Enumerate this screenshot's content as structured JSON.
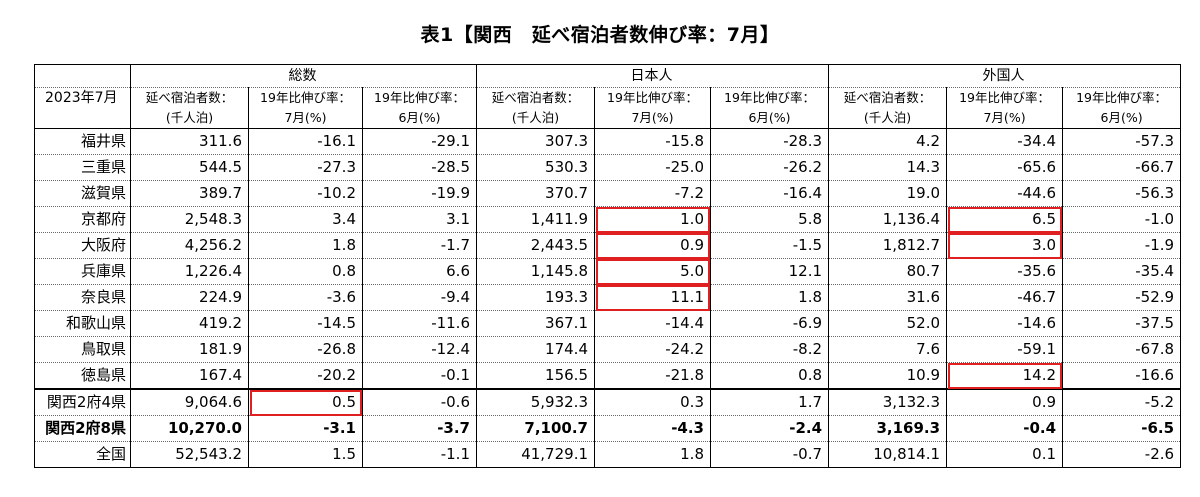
{
  "title": "表1【関西　延べ宿泊者数伸び率：7月】",
  "header": {
    "corner_label": "2023年7月",
    "groups": [
      "総数",
      "日本人",
      "外国人"
    ],
    "sub1": [
      "延べ宿泊者数：",
      "19年比伸び率：",
      "19年比伸び率："
    ],
    "sub2": [
      "(千人泊)",
      "7月(%)",
      "6月(%)"
    ]
  },
  "rows": [
    {
      "label": "福井県",
      "cells": [
        "311.6",
        "-16.1",
        "-29.1",
        "307.3",
        "-15.8",
        "-28.3",
        "4.2",
        "-34.4",
        "-57.3"
      ]
    },
    {
      "label": "三重県",
      "cells": [
        "544.5",
        "-27.3",
        "-28.5",
        "530.3",
        "-25.0",
        "-26.2",
        "14.3",
        "-65.6",
        "-66.7"
      ]
    },
    {
      "label": "滋賀県",
      "cells": [
        "389.7",
        "-10.2",
        "-19.9",
        "370.7",
        "-7.2",
        "-16.4",
        "19.0",
        "-44.6",
        "-56.3"
      ]
    },
    {
      "label": "京都府",
      "cells": [
        "2,548.3",
        "3.4",
        "3.1",
        "1,411.9",
        "1.0",
        "5.8",
        "1,136.4",
        "6.5",
        "-1.0"
      ]
    },
    {
      "label": "大阪府",
      "cells": [
        "4,256.2",
        "1.8",
        "-1.7",
        "2,443.5",
        "0.9",
        "-1.5",
        "1,812.7",
        "3.0",
        "-1.9"
      ]
    },
    {
      "label": "兵庫県",
      "cells": [
        "1,226.4",
        "0.8",
        "6.6",
        "1,145.8",
        "5.0",
        "12.1",
        "80.7",
        "-35.6",
        "-35.4"
      ]
    },
    {
      "label": "奈良県",
      "cells": [
        "224.9",
        "-3.6",
        "-9.4",
        "193.3",
        "11.1",
        "1.8",
        "31.6",
        "-46.7",
        "-52.9"
      ]
    },
    {
      "label": "和歌山県",
      "cells": [
        "419.2",
        "-14.5",
        "-11.6",
        "367.1",
        "-14.4",
        "-6.9",
        "52.0",
        "-14.6",
        "-37.5"
      ]
    },
    {
      "label": "鳥取県",
      "cells": [
        "181.9",
        "-26.8",
        "-12.4",
        "174.4",
        "-24.2",
        "-8.2",
        "7.6",
        "-59.1",
        "-67.8"
      ]
    },
    {
      "label": "徳島県",
      "cells": [
        "167.4",
        "-20.2",
        "-0.1",
        "156.5",
        "-21.8",
        "0.8",
        "10.9",
        "14.2",
        "-16.6"
      ]
    },
    {
      "label": "関西2府4県",
      "cells": [
        "9,064.6",
        "0.5",
        "-0.6",
        "5,932.3",
        "0.3",
        "1.7",
        "3,132.3",
        "0.9",
        "-5.2"
      ]
    },
    {
      "label": "関西2府8県",
      "cells": [
        "10,270.0",
        "-3.1",
        "-3.7",
        "7,100.7",
        "-4.3",
        "-2.4",
        "3,169.3",
        "-0.4",
        "-6.5"
      ]
    },
    {
      "label": "全国",
      "cells": [
        "52,543.2",
        "1.5",
        "-1.1",
        "41,729.1",
        "1.8",
        "-0.7",
        "10,814.1",
        "0.1",
        "-2.6"
      ]
    }
  ],
  "highlight_color": "#e02020"
}
